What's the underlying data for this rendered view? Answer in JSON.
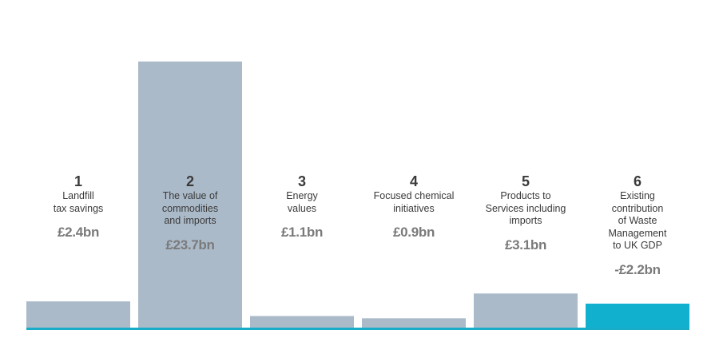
{
  "chart_data": {
    "type": "bar",
    "baseline_color": "#19acc9",
    "bars": [
      {
        "number": "1",
        "label_lines": [
          "Landfill",
          "tax savings"
        ],
        "value_text": "£2.4bn",
        "value": 2.4,
        "color": "#abbac9"
      },
      {
        "number": "2",
        "label_lines": [
          "The value of",
          "commodities",
          "and imports"
        ],
        "value_text": "£23.7bn",
        "value": 23.7,
        "color": "#abbac9"
      },
      {
        "number": "3",
        "label_lines": [
          "Energy",
          "values"
        ],
        "value_text": "£1.1bn",
        "value": 1.1,
        "color": "#abbac9"
      },
      {
        "number": "4",
        "label_lines": [
          "Focused chemical",
          "initiatives"
        ],
        "value_text": "£0.9bn",
        "value": 0.9,
        "color": "#abbac9"
      },
      {
        "number": "5",
        "label_lines": [
          "Products to",
          "Services including",
          "imports"
        ],
        "value_text": "£3.1bn",
        "value": 3.1,
        "color": "#abbac9"
      },
      {
        "number": "6",
        "label_lines": [
          "Existing",
          "contribution",
          "of Waste",
          "Management",
          "to UK GDP"
        ],
        "value_text": "-£2.2bn",
        "value": -2.2,
        "color": "#12b0cf"
      }
    ]
  }
}
